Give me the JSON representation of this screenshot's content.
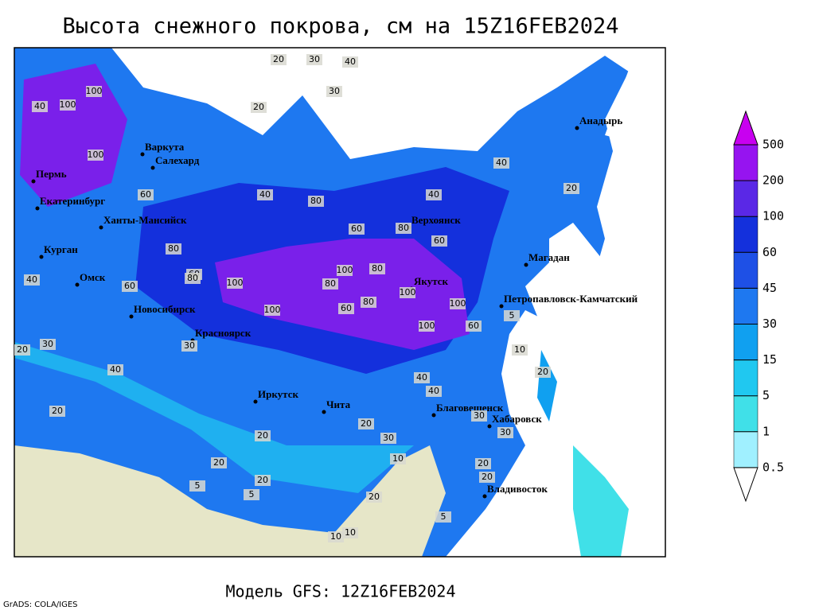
{
  "title": "Высота снежного покрова, см на 15Z16FEB2024",
  "footer": "Модель GFS: 12Z16FEB2024",
  "credit": "GrADS: COLA/IGES",
  "legend": {
    "levels": [
      0.5,
      1,
      5,
      15,
      30,
      45,
      60,
      100,
      200,
      500
    ],
    "colors": [
      "#ffffff",
      "#a0f0ff",
      "#40e0e8",
      "#20c8f0",
      "#10a0f0",
      "#1e78f0",
      "#1e50e6",
      "#1430dc",
      "#5a28e6",
      "#9614f0",
      "#c800f0"
    ]
  },
  "cities": [
    "Анадырь",
    "Варкута",
    "Салехард",
    "Пермь",
    "Екатеринбург",
    "Ханты-Мансийск",
    "Верхоянск",
    "Курган",
    "Омск",
    "Магадан",
    "Якутск",
    "Петропавловск-Камчатский",
    "Новосибирск",
    "Красноярск",
    "Иркутск",
    "Чита",
    "Благовещенск",
    "Хабаровск",
    "Владивосток"
  ],
  "contour_labels": [
    20,
    30,
    40,
    30,
    100,
    100,
    40,
    100,
    20,
    60,
    40,
    40,
    40,
    80,
    60,
    80,
    60,
    80,
    60,
    40,
    60,
    80,
    100,
    80,
    100,
    80,
    100,
    100,
    60,
    80,
    100,
    100,
    60,
    30,
    40,
    20,
    30,
    20,
    20,
    20,
    40,
    40,
    30,
    30,
    20,
    20,
    10,
    20,
    20,
    10,
    5,
    5,
    10,
    5,
    20,
    30,
    20,
    20,
    5,
    10
  ]
}
